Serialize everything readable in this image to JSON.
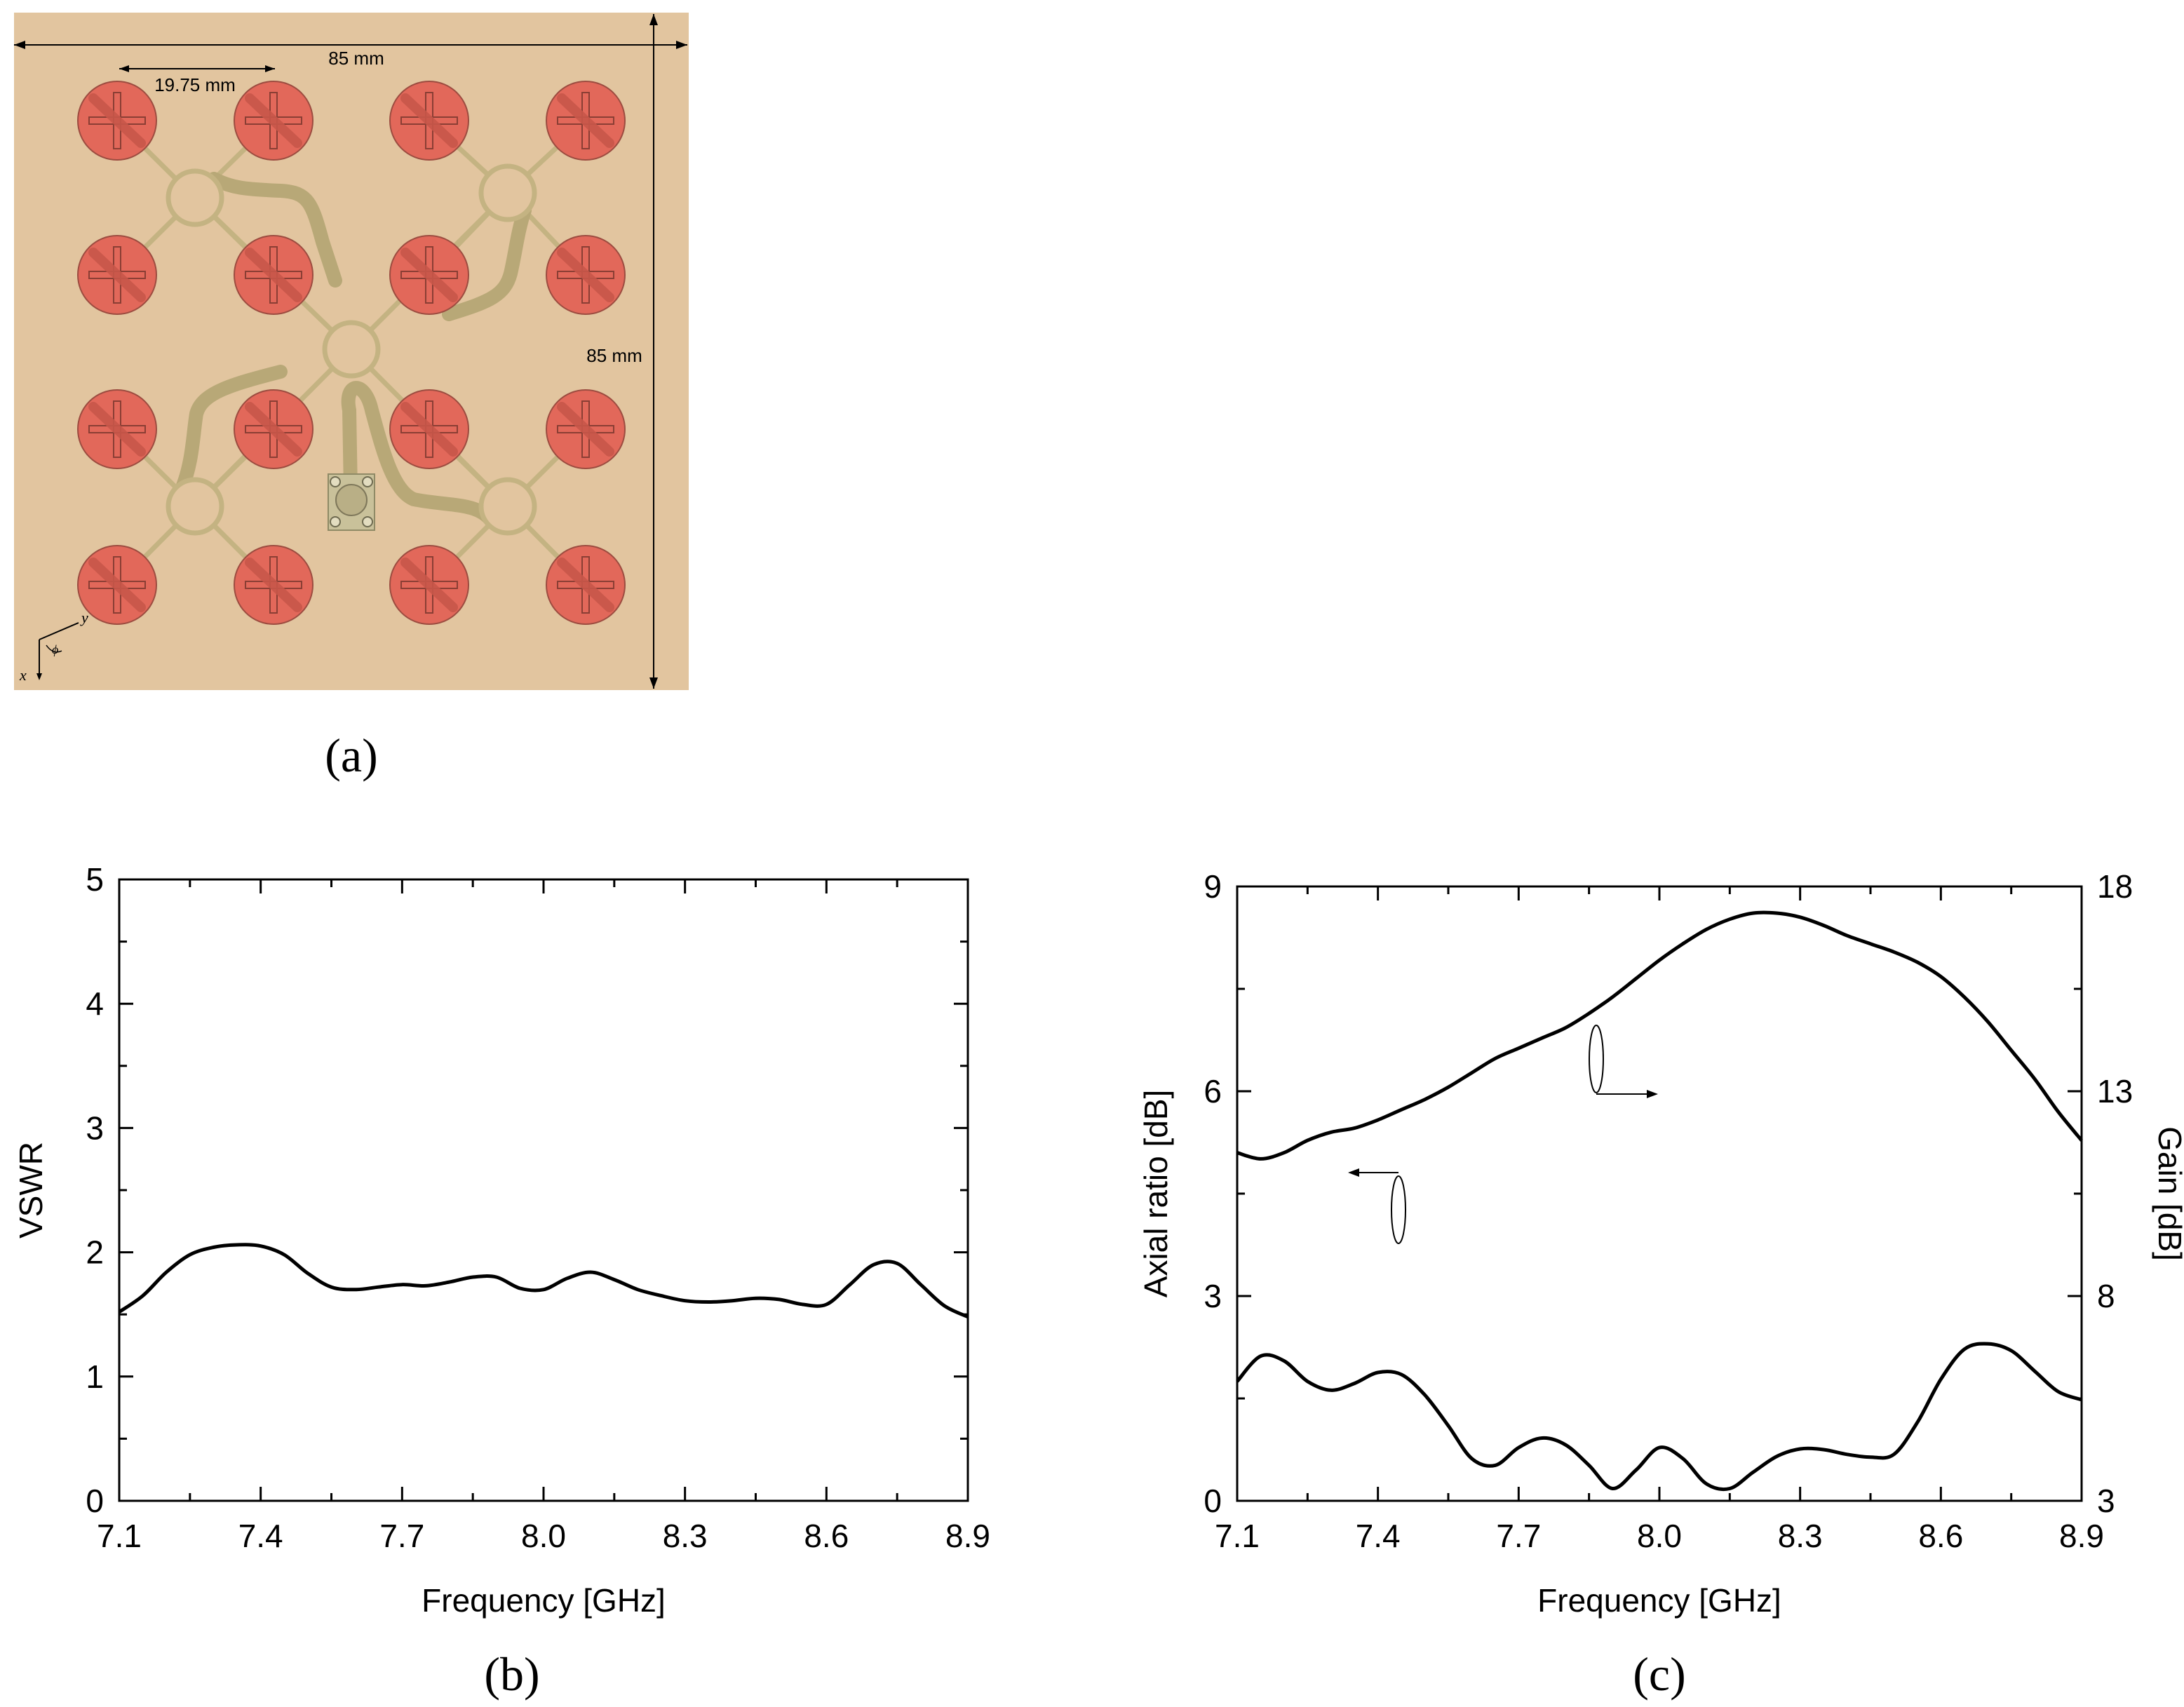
{
  "panel_a": {
    "label": "(a)",
    "dim_width": "85 mm",
    "dim_height": "85 mm",
    "dim_pitch": "19.75 mm",
    "axis_x": "x",
    "axis_y": "y",
    "axis_phi": "ϕ",
    "colors": {
      "substrate": "#E2C59F",
      "patch": "#E2685A",
      "feed": "#C4B382"
    }
  },
  "panel_b": {
    "label": "(b)"
  },
  "panel_c": {
    "label": "(c)"
  },
  "chart_data": [
    {
      "type": "line",
      "panel": "b",
      "title": "",
      "xlabel": "Frequency [GHz]",
      "ylabel": "VSWR",
      "xlim": [
        7.1,
        8.9
      ],
      "ylim": [
        0,
        5
      ],
      "xticks": [
        "7.1",
        "7.4",
        "7.7",
        "8.0",
        "8.3",
        "8.6",
        "8.9"
      ],
      "yticks": [
        "0",
        "1",
        "2",
        "3",
        "4",
        "5"
      ],
      "series": [
        {
          "name": "VSWR",
          "x": [
            7.1,
            7.15,
            7.2,
            7.25,
            7.3,
            7.35,
            7.4,
            7.45,
            7.5,
            7.55,
            7.6,
            7.65,
            7.7,
            7.75,
            7.8,
            7.85,
            7.9,
            7.95,
            8.0,
            8.05,
            8.1,
            8.15,
            8.2,
            8.25,
            8.3,
            8.35,
            8.4,
            8.45,
            8.5,
            8.55,
            8.6,
            8.65,
            8.7,
            8.75,
            8.8,
            8.85,
            8.9
          ],
          "y": [
            1.52,
            1.65,
            1.84,
            1.98,
            2.04,
            2.06,
            2.05,
            1.98,
            1.83,
            1.72,
            1.7,
            1.72,
            1.74,
            1.73,
            1.76,
            1.8,
            1.8,
            1.71,
            1.7,
            1.79,
            1.84,
            1.78,
            1.7,
            1.65,
            1.61,
            1.6,
            1.61,
            1.63,
            1.62,
            1.58,
            1.58,
            1.74,
            1.9,
            1.91,
            1.74,
            1.57,
            1.48
          ]
        }
      ]
    },
    {
      "type": "line",
      "panel": "c",
      "title": "",
      "xlabel": "Frequency [GHz]",
      "ylabel": "Axial ratio [dB]",
      "ylabel_right": "Gain [dB]",
      "xlim": [
        7.1,
        8.9
      ],
      "ylim": [
        0,
        9
      ],
      "ylim_right": [
        3,
        18
      ],
      "xticks": [
        "7.1",
        "7.4",
        "7.7",
        "8.0",
        "8.3",
        "8.6",
        "8.9"
      ],
      "yticks": [
        "0",
        "3",
        "6",
        "9"
      ],
      "yticks_right": [
        "3",
        "8",
        "13",
        "18"
      ],
      "series": [
        {
          "name": "Gain",
          "axis": "right",
          "x": [
            7.1,
            7.15,
            7.2,
            7.25,
            7.3,
            7.35,
            7.4,
            7.45,
            7.5,
            7.55,
            7.6,
            7.65,
            7.7,
            7.75,
            7.8,
            7.85,
            7.9,
            7.95,
            8.0,
            8.05,
            8.1,
            8.15,
            8.2,
            8.25,
            8.3,
            8.35,
            8.4,
            8.45,
            8.5,
            8.55,
            8.6,
            8.65,
            8.7,
            8.75,
            8.8,
            8.85,
            8.9
          ],
          "y": [
            11.5,
            11.35,
            11.5,
            11.8,
            12.0,
            12.1,
            12.3,
            12.55,
            12.8,
            13.1,
            13.45,
            13.8,
            14.05,
            14.3,
            14.55,
            14.9,
            15.3,
            15.75,
            16.2,
            16.6,
            16.95,
            17.2,
            17.35,
            17.35,
            17.25,
            17.05,
            16.8,
            16.6,
            16.4,
            16.15,
            15.8,
            15.3,
            14.7,
            14.0,
            13.3,
            12.5,
            11.8
          ]
        },
        {
          "name": "Axial ratio",
          "axis": "left",
          "x": [
            7.1,
            7.15,
            7.2,
            7.25,
            7.3,
            7.35,
            7.4,
            7.45,
            7.5,
            7.55,
            7.6,
            7.65,
            7.7,
            7.75,
            7.8,
            7.85,
            7.9,
            7.95,
            8.0,
            8.05,
            8.1,
            8.15,
            8.2,
            8.25,
            8.3,
            8.35,
            8.4,
            8.45,
            8.5,
            8.55,
            8.6,
            8.65,
            8.7,
            8.75,
            8.8,
            8.85,
            8.9
          ],
          "y": [
            1.75,
            2.12,
            2.05,
            1.75,
            1.62,
            1.72,
            1.88,
            1.85,
            1.55,
            1.1,
            0.62,
            0.52,
            0.78,
            0.92,
            0.82,
            0.52,
            0.18,
            0.45,
            0.78,
            0.62,
            0.25,
            0.18,
            0.42,
            0.65,
            0.76,
            0.75,
            0.68,
            0.64,
            0.68,
            1.15,
            1.78,
            2.22,
            2.3,
            2.2,
            1.9,
            1.6,
            1.48
          ]
        }
      ]
    }
  ]
}
